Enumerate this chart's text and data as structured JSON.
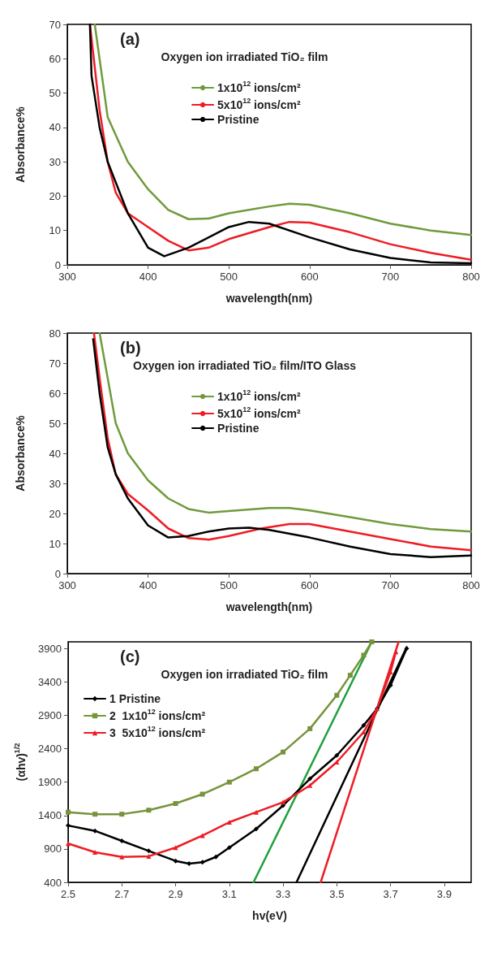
{
  "chart_data": [
    {
      "type": "line",
      "title": "Oxygen ion irradiated TiO₂ film",
      "annotations": [
        "(a)"
      ],
      "xlabel": "wavelength(nm)",
      "ylabel": "Absorbance%",
      "xlim": [
        300,
        800
      ],
      "xticks": [
        300,
        400,
        500,
        600,
        700,
        800
      ],
      "ylim": [
        0,
        70
      ],
      "yticks": [
        0,
        10,
        20,
        30,
        40,
        50,
        60,
        70
      ],
      "grid": false,
      "legend": "top",
      "marker": "none",
      "series": [
        {
          "name": "1x10$^{12}$ ions/cm²",
          "color": "#6f9b3c",
          "x": [
            334,
            350,
            375,
            400,
            425,
            450,
            475,
            500,
            550,
            575,
            600,
            650,
            700,
            750,
            800
          ],
          "values": [
            70,
            43,
            30,
            22,
            16,
            13.3,
            13.5,
            15,
            17,
            17.8,
            17.5,
            15,
            12,
            10,
            8.7
          ]
        },
        {
          "name": "5x10$^{12}$ ions/cm²",
          "color": "#ee1c25",
          "x": [
            328,
            340,
            350,
            360,
            375,
            400,
            425,
            450,
            475,
            500,
            550,
            575,
            600,
            650,
            700,
            750,
            800
          ],
          "values": [
            70,
            45,
            30,
            21,
            15,
            11,
            7,
            4.2,
            5,
            7.5,
            11,
            12.5,
            12.3,
            9.5,
            6,
            3.5,
            1.5
          ]
        },
        {
          "name": "Pristine",
          "color": "#000000",
          "x": [
            328,
            330,
            340,
            350,
            375,
            400,
            420,
            450,
            500,
            525,
            550,
            600,
            650,
            700,
            750,
            800
          ],
          "values": [
            70,
            55,
            40,
            30,
            15,
            5,
            2.5,
            5,
            11,
            12.5,
            12,
            8,
            4.5,
            2,
            0.7,
            0.5
          ]
        }
      ]
    },
    {
      "type": "line",
      "title": "Oxygen ion irradiated TiO₂ film/ITO Glass",
      "annotations": [
        "(b)"
      ],
      "xlabel": "wavelength(nm)",
      "ylabel": "Absorbance%",
      "xlim": [
        300,
        800
      ],
      "xticks": [
        300,
        400,
        500,
        600,
        700,
        800
      ],
      "ylim": [
        0,
        80
      ],
      "yticks": [
        0,
        10,
        20,
        30,
        40,
        50,
        60,
        70,
        80
      ],
      "grid": false,
      "legend": "top",
      "marker": "none",
      "series": [
        {
          "name": "1x10$^{12}$ ions/cm²",
          "color": "#6f9b3c",
          "x": [
            340,
            350,
            360,
            375,
            400,
            425,
            450,
            475,
            500,
            550,
            575,
            600,
            650,
            700,
            750,
            800
          ],
          "values": [
            80,
            65,
            50,
            40,
            31,
            25,
            21.5,
            20.3,
            20.8,
            21.8,
            21.8,
            21,
            18.8,
            16.5,
            14.8,
            14
          ]
        },
        {
          "name": "5x10$^{12}$ ions/cm²",
          "color": "#ee1c25",
          "x": [
            333,
            340,
            350,
            360,
            375,
            400,
            425,
            450,
            475,
            500,
            540,
            575,
            600,
            650,
            700,
            750,
            800
          ],
          "values": [
            80,
            65,
            45,
            33,
            26.5,
            21,
            15,
            11.8,
            11.3,
            12.5,
            15,
            16.5,
            16.5,
            14,
            11.5,
            9,
            7.8
          ]
        },
        {
          "name": "Pristine",
          "color": "#000000",
          "x": [
            332,
            340,
            350,
            360,
            375,
            400,
            425,
            450,
            475,
            500,
            525,
            550,
            600,
            650,
            700,
            750,
            800
          ],
          "values": [
            78,
            60,
            42,
            33,
            25,
            16,
            12,
            12.5,
            14,
            15,
            15.3,
            14.5,
            12,
            9,
            6.5,
            5.5,
            6
          ]
        }
      ]
    },
    {
      "type": "line",
      "title": "Oxygen ion irradiated TiO₂ film",
      "annotations": [
        "(c)"
      ],
      "xlabel": "hv(eV)",
      "ylabel": "(αhv)$^{1/2}$",
      "xlim": [
        2.5,
        4.0
      ],
      "xticks": [
        2.5,
        2.7,
        2.9,
        3.1,
        3.3,
        3.5,
        3.7,
        3.9
      ],
      "ylim": [
        400,
        4000
      ],
      "yticks": [
        400,
        900,
        1400,
        1900,
        2400,
        2900,
        3400,
        3900
      ],
      "grid": false,
      "legend": "top left",
      "series": [
        {
          "name": "1 Pristine",
          "color": "#000000",
          "marker": "diamond",
          "x": [
            2.5,
            2.6,
            2.7,
            2.8,
            2.9,
            2.95,
            3.0,
            3.05,
            3.1,
            3.2,
            3.3,
            3.4,
            3.5,
            3.6,
            3.65,
            3.7,
            3.76
          ],
          "values": [
            1250,
            1170,
            1020,
            870,
            720,
            680,
            700,
            780,
            920,
            1200,
            1550,
            1950,
            2300,
            2750,
            3000,
            3350,
            3900
          ]
        },
        {
          "name": "2  1x10$^{12}$ ions/cm²",
          "color": "#77933c",
          "marker": "square",
          "x": [
            2.5,
            2.6,
            2.7,
            2.8,
            2.9,
            3.0,
            3.1,
            3.2,
            3.3,
            3.4,
            3.5,
            3.55,
            3.6,
            3.63
          ],
          "values": [
            1450,
            1420,
            1420,
            1480,
            1580,
            1720,
            1900,
            2100,
            2350,
            2700,
            3200,
            3500,
            3800,
            4000
          ]
        },
        {
          "name": "3  5x10$^{12}$ ions/cm²",
          "color": "#ee1c25",
          "marker": "triangle",
          "x": [
            2.5,
            2.6,
            2.7,
            2.8,
            2.9,
            3.0,
            3.1,
            3.2,
            3.3,
            3.4,
            3.5,
            3.6,
            3.65,
            3.7,
            3.72
          ],
          "values": [
            980,
            850,
            780,
            790,
            920,
            1100,
            1300,
            1450,
            1600,
            1850,
            2200,
            2650,
            3000,
            3550,
            3850
          ]
        },
        {
          "color": "#1fa03c",
          "marker": "none",
          "x": [
            3.19,
            3.63
          ],
          "values": [
            400,
            4000
          ]
        },
        {
          "color": "#000000",
          "marker": "none",
          "x": [
            3.35,
            3.76
          ],
          "values": [
            400,
            3920
          ]
        },
        {
          "color": "#ee1c25",
          "marker": "none",
          "x": [
            3.44,
            3.73
          ],
          "values": [
            400,
            4000
          ]
        }
      ]
    }
  ]
}
